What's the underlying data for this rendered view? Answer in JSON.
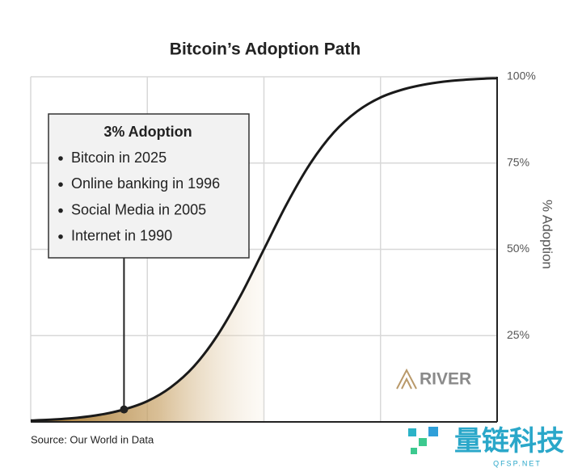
{
  "chart_data": {
    "type": "line",
    "title": "Bitcoin’s Adoption Path",
    "y_label": "% Adoption",
    "categories": [
      null,
      null,
      null,
      null,
      null,
      null,
      null,
      null,
      null,
      null,
      null,
      null,
      null,
      null,
      null,
      null,
      null,
      null,
      null,
      null,
      null
    ],
    "series": [
      {
        "color": "#1a1a1a",
        "values": [
          0.4,
          0.7,
          1.2,
          2.1,
          3.6,
          6.0,
          10.0,
          16.1,
          25.0,
          36.6,
          50,
          63.4,
          75,
          83.9,
          90,
          94,
          96.4,
          97.9,
          98.8,
          99.3,
          99.6
        ]
      }
    ],
    "ylim": [
      0,
      100
    ],
    "yticks": [
      {
        "value": 25,
        "label": "25%"
      },
      {
        "value": 50,
        "label": "50%"
      },
      {
        "value": 75,
        "label": "75%"
      },
      {
        "value": 100,
        "label": "100%"
      }
    ],
    "grid": true,
    "annotation": {
      "title": "3% Adoption",
      "items": [
        "Bitcoin in 2025",
        "Online banking in 1996",
        "Social Media in 2005",
        "Internet in 1990"
      ]
    },
    "source": "Source: Our World in Data",
    "logo": "RIVER"
  },
  "watermark": {
    "name": "量链科技",
    "site": "QFSP.NET"
  }
}
